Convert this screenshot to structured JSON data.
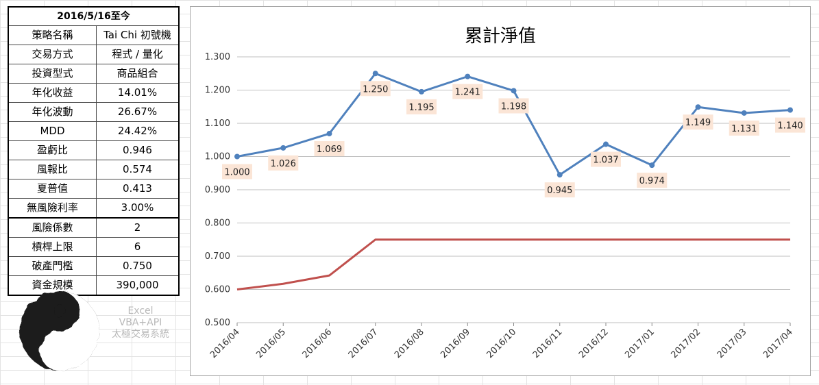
{
  "stats": {
    "header": "2016/5/16至今",
    "rows": [
      {
        "k": "策略名稱",
        "v": "Tai Chi 初號機"
      },
      {
        "k": "交易方式",
        "v": "程式 / 量化"
      },
      {
        "k": "投資型式",
        "v": "商品組合"
      },
      {
        "k": "年化收益",
        "v": "14.01%"
      },
      {
        "k": "年化波動",
        "v": "26.67%"
      },
      {
        "k": "MDD",
        "v": "24.42%"
      },
      {
        "k": "盈虧比",
        "v": "0.946"
      },
      {
        "k": "風報比",
        "v": "0.574"
      },
      {
        "k": "夏普值",
        "v": "0.413"
      },
      {
        "k": "無風險利率",
        "v": "3.00%"
      }
    ],
    "params": [
      {
        "k": "風險係數",
        "v": "2"
      },
      {
        "k": "槓桿上限",
        "v": "6"
      },
      {
        "k": "破產門檻",
        "v": "0.750"
      },
      {
        "k": "資金規模",
        "v": "390,000"
      }
    ]
  },
  "watermark": [
    "Excel",
    "VBA+API",
    "太極交易系統"
  ],
  "colors": {
    "nav": "#4f81bd",
    "floor": "#c0504d",
    "label_bg": "#fbe5d6",
    "grid": "#bfbfbf"
  },
  "chart_data": {
    "type": "line",
    "title": "累計淨值",
    "categories": [
      "2016/04",
      "2016/05",
      "2016/06",
      "2016/07",
      "2016/08",
      "2016/09",
      "2016/10",
      "2016/11",
      "2016/12",
      "2017/01",
      "2017/02",
      "2017/03",
      "2017/04"
    ],
    "ylim": [
      0.5,
      1.3
    ],
    "yticks": [
      "0.500",
      "0.600",
      "0.700",
      "0.800",
      "0.900",
      "1.000",
      "1.100",
      "1.200",
      "1.300"
    ],
    "grid": true,
    "series": [
      {
        "values": [
          1.0,
          1.026,
          1.069,
          1.25,
          1.195,
          1.241,
          1.198,
          0.945,
          1.037,
          0.974,
          1.149,
          1.131,
          1.14
        ],
        "labels": [
          "1.000",
          "1.026",
          "1.069",
          "1.250",
          "1.195",
          "1.241",
          "1.198",
          "0.945",
          "1.037",
          "0.974",
          "1.149",
          "1.131",
          "1.140"
        ],
        "markers": true
      },
      {
        "values": [
          0.6,
          0.617,
          0.642,
          0.75,
          0.75,
          0.75,
          0.75,
          0.75,
          0.75,
          0.75,
          0.75,
          0.75,
          0.75
        ],
        "markers": false
      }
    ]
  }
}
